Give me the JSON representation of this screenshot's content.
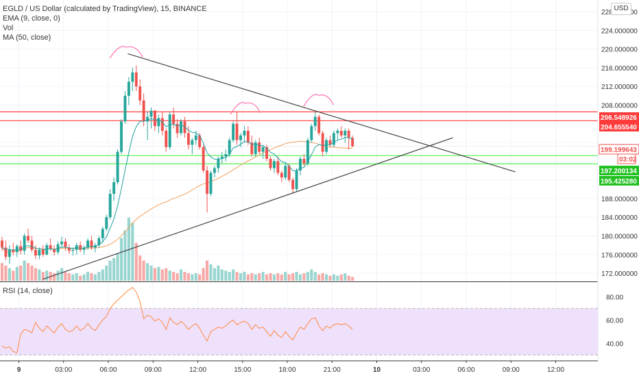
{
  "header": {
    "title": "EGLD / US Dollar (calculated by TradingView), 15, BINANCE",
    "indicators": [
      "EMA (9, close, 0)",
      "Vol",
      "MA (50, close)"
    ],
    "currency": "USD"
  },
  "rsi_panel": {
    "label": "RSI (14, close)"
  },
  "colors": {
    "up": "#26a69a",
    "down": "#ef5350",
    "ema": "#21a0a0",
    "ma": "#f5a05a",
    "resistance": "#ff3b3b",
    "support": "#4cf04c",
    "trendline": "#444444",
    "annotation": "#ff6fb0",
    "rsi_line": "#ff8a3d",
    "rsi_band": "#efe0fc"
  },
  "chart_data": [
    {
      "type": "candlestick",
      "title": "EGLD / US Dollar (calculated by TradingView), 15, BINANCE",
      "ylim": [
        170.4,
        230.5
      ],
      "y_ticks": [
        172,
        176,
        180,
        184,
        188,
        192,
        196,
        200,
        204,
        208,
        212,
        216,
        220,
        224,
        228
      ],
      "y_tick_labels": [
        "172.000000",
        "176.000000",
        "180.000000",
        "184.000000",
        "188.000000",
        "",
        "",
        "",
        "",
        "208.000000",
        "212.000000",
        "216.000000",
        "220.000000",
        "224.000000",
        "228.000000"
      ],
      "x_ticks": [
        "9",
        "03:00",
        "06:00",
        "09:00",
        "12:00",
        "15:00",
        "18:00",
        "21:00",
        "10",
        "03:00",
        "06:00",
        "09:00",
        "12:00"
      ],
      "x_tick_hours": [
        0,
        3,
        6,
        9,
        12,
        15,
        18,
        21,
        24,
        27,
        30,
        33,
        36
      ],
      "interval_minutes": 15,
      "candles_ohlc": [
        [
          179.0,
          179.8,
          176.8,
          177.5
        ],
        [
          177.5,
          179.0,
          174.8,
          175.5
        ],
        [
          175.5,
          178.0,
          174.0,
          177.0
        ],
        [
          177.0,
          178.5,
          175.8,
          176.5
        ],
        [
          176.5,
          178.2,
          175.5,
          177.8
        ],
        [
          177.8,
          179.0,
          176.0,
          176.8
        ],
        [
          176.8,
          180.5,
          176.0,
          180.0
        ],
        [
          180.0,
          181.5,
          178.5,
          179.0
        ],
        [
          179.0,
          180.0,
          176.5,
          177.0
        ],
        [
          177.0,
          178.0,
          175.0,
          175.8
        ],
        [
          175.8,
          177.5,
          175.0,
          177.0
        ],
        [
          177.0,
          178.0,
          175.5,
          176.0
        ],
        [
          176.0,
          178.5,
          175.8,
          178.0
        ],
        [
          178.0,
          179.5,
          176.8,
          177.2
        ],
        [
          177.2,
          178.0,
          175.8,
          176.5
        ],
        [
          176.5,
          178.8,
          176.0,
          178.2
        ],
        [
          178.2,
          179.8,
          177.5,
          178.8
        ],
        [
          178.8,
          179.5,
          176.8,
          177.5
        ],
        [
          177.5,
          178.2,
          176.2,
          176.8
        ],
        [
          176.8,
          177.5,
          175.8,
          177.0
        ],
        [
          177.0,
          178.5,
          176.0,
          178.0
        ],
        [
          178.0,
          178.8,
          176.5,
          177.0
        ],
        [
          177.0,
          178.0,
          176.0,
          177.5
        ],
        [
          177.5,
          179.5,
          177.0,
          179.0
        ],
        [
          179.0,
          180.0,
          177.0,
          177.5
        ],
        [
          177.5,
          178.5,
          176.5,
          178.0
        ],
        [
          178.0,
          180.0,
          177.5,
          179.5
        ],
        [
          179.5,
          182.0,
          178.5,
          181.5
        ],
        [
          181.5,
          184.5,
          181.0,
          184.0
        ],
        [
          184.0,
          190.0,
          183.5,
          189.0
        ],
        [
          189.0,
          192.5,
          187.5,
          191.5
        ],
        [
          191.5,
          198.5,
          191.0,
          198.0
        ],
        [
          198.0,
          205.0,
          197.5,
          204.5
        ],
        [
          204.5,
          211.0,
          204.0,
          210.0
        ],
        [
          210.0,
          214.0,
          208.0,
          213.0
        ],
        [
          213.0,
          216.0,
          211.0,
          215.0
        ],
        [
          215.0,
          216.5,
          211.0,
          212.0
        ],
        [
          212.0,
          213.5,
          208.0,
          209.0
        ],
        [
          209.0,
          210.5,
          203.5,
          204.5
        ],
        [
          204.5,
          206.5,
          200.5,
          205.5
        ],
        [
          205.5,
          207.5,
          203.0,
          206.8
        ],
        [
          206.8,
          207.0,
          202.5,
          203.5
        ],
        [
          203.5,
          206.0,
          202.0,
          205.2
        ],
        [
          205.2,
          206.5,
          201.5,
          202.5
        ],
        [
          202.5,
          203.0,
          198.0,
          199.0
        ],
        [
          199.0,
          206.5,
          198.5,
          206.0
        ],
        [
          206.0,
          207.5,
          203.0,
          204.0
        ],
        [
          204.0,
          205.0,
          201.0,
          202.0
        ],
        [
          202.0,
          205.0,
          201.5,
          204.5
        ],
        [
          204.5,
          205.5,
          201.0,
          202.0
        ],
        [
          202.0,
          203.5,
          198.5,
          199.5
        ],
        [
          199.5,
          201.0,
          197.5,
          200.5
        ],
        [
          200.5,
          202.5,
          199.5,
          201.5
        ],
        [
          201.5,
          202.0,
          198.5,
          199.0
        ],
        [
          199.0,
          199.5,
          193.5,
          194.0
        ],
        [
          194.0,
          195.0,
          185.0,
          189.0
        ],
        [
          189.0,
          194.0,
          188.5,
          193.5
        ],
        [
          193.5,
          195.0,
          192.5,
          194.5
        ],
        [
          194.5,
          197.0,
          193.5,
          196.5
        ],
        [
          196.5,
          198.0,
          195.5,
          197.0
        ],
        [
          197.0,
          198.5,
          196.0,
          197.5
        ],
        [
          197.5,
          201.0,
          197.0,
          200.5
        ],
        [
          200.5,
          204.5,
          200.0,
          204.0
        ],
        [
          204.0,
          206.5,
          199.5,
          200.5
        ],
        [
          200.5,
          202.0,
          199.0,
          201.5
        ],
        [
          201.5,
          203.5,
          200.0,
          202.5
        ],
        [
          202.5,
          203.5,
          199.5,
          200.0
        ],
        [
          200.0,
          201.5,
          197.0,
          197.5
        ],
        [
          197.5,
          200.5,
          197.0,
          200.0
        ],
        [
          200.0,
          201.0,
          197.5,
          198.0
        ],
        [
          198.0,
          199.5,
          196.5,
          199.0
        ],
        [
          199.0,
          199.5,
          196.0,
          196.5
        ],
        [
          196.5,
          197.0,
          194.0,
          194.5
        ],
        [
          194.5,
          196.5,
          193.5,
          196.0
        ],
        [
          196.0,
          197.0,
          193.0,
          193.5
        ],
        [
          193.5,
          194.0,
          191.5,
          192.5
        ],
        [
          192.5,
          195.5,
          192.0,
          195.0
        ],
        [
          195.0,
          195.5,
          191.5,
          192.0
        ],
        [
          192.0,
          192.5,
          189.0,
          190.0
        ],
        [
          190.0,
          194.5,
          189.5,
          194.0
        ],
        [
          194.0,
          197.0,
          193.0,
          196.5
        ],
        [
          196.5,
          197.5,
          195.0,
          195.5
        ],
        [
          195.5,
          201.0,
          195.0,
          200.5
        ],
        [
          200.5,
          204.0,
          200.0,
          203.5
        ],
        [
          203.5,
          206.5,
          202.5,
          205.5
        ],
        [
          205.5,
          206.0,
          201.5,
          202.0
        ],
        [
          202.0,
          202.5,
          197.0,
          198.0
        ],
        [
          198.0,
          201.0,
          197.5,
          200.5
        ],
        [
          200.5,
          201.5,
          199.0,
          199.5
        ],
        [
          199.5,
          202.5,
          199.0,
          202.0
        ],
        [
          202.0,
          203.0,
          200.5,
          202.5
        ],
        [
          202.5,
          203.5,
          201.0,
          201.5
        ],
        [
          201.5,
          203.0,
          200.0,
          202.5
        ],
        [
          202.5,
          203.0,
          198.5,
          201.0
        ],
        [
          201.0,
          201.5,
          199.0,
          199.2
        ]
      ],
      "volume": [
        7.0,
        6.0,
        5.0,
        4.0,
        5.5,
        6.0,
        8.0,
        7.0,
        6.0,
        5.0,
        4.5,
        3.5,
        4.0,
        3.5,
        3.0,
        4.0,
        5.0,
        3.5,
        3.0,
        2.5,
        3.0,
        2.0,
        2.5,
        3.5,
        3.0,
        2.5,
        3.5,
        4.5,
        6.0,
        8.0,
        9.0,
        11.0,
        17.0,
        20.0,
        25.0,
        23.0,
        15.0,
        10.0,
        8.0,
        7.0,
        6.0,
        5.0,
        5.5,
        4.5,
        5.0,
        4.0,
        3.5,
        3.0,
        4.5,
        3.5,
        3.0,
        2.5,
        3.0,
        2.5,
        5.0,
        8.0,
        6.5,
        5.0,
        6.0,
        4.5,
        4.0,
        3.5,
        4.5,
        3.5,
        3.0,
        3.5,
        2.5,
        3.0,
        2.5,
        3.0,
        3.5,
        2.5,
        3.0,
        2.5,
        3.0,
        2.5,
        3.5,
        2.5,
        3.0,
        3.5,
        2.5,
        3.0,
        3.5,
        4.5,
        3.5,
        2.5,
        3.0,
        2.5,
        2.0,
        2.5,
        2.0,
        2.5,
        3.0,
        2.0,
        1.5
      ],
      "horizontal_lines": [
        206.548926,
        204.65554,
        199.199643,
        197.200134,
        195.42528
      ],
      "price_labels": [
        {
          "text": "206.548926",
          "value": 206.548926,
          "kind": "resistance"
        },
        {
          "text": "204.655540",
          "value": 204.65554,
          "kind": "resistance"
        },
        {
          "text": "199.199643",
          "value": 199.199643,
          "kind": "last"
        },
        {
          "text": "03:02",
          "value": 197.75,
          "kind": "countdown"
        },
        {
          "text": "197.200134",
          "value": 197.200134,
          "kind": "support"
        },
        {
          "text": "195.425280",
          "value": 195.42528,
          "kind": "support"
        }
      ],
      "trendlines": [
        {
          "from": [
            7.3,
            219.0
          ],
          "to": [
            33.3,
            193.7
          ]
        },
        {
          "from": [
            1.6,
            170.7
          ],
          "to": [
            29.1,
            201.0
          ]
        }
      ]
    },
    {
      "type": "line",
      "title": "RSI (14, close)",
      "ylim": [
        25,
        92
      ],
      "y_ticks": [
        40,
        60,
        80
      ],
      "y_tick_labels": [
        "40.00",
        "60.00",
        "80.00"
      ],
      "band": [
        30,
        70
      ],
      "values": [
        38,
        36,
        37,
        33,
        32,
        48,
        52,
        51,
        49,
        58,
        53,
        50,
        55,
        52,
        49,
        54,
        57,
        52,
        50,
        51,
        55,
        51,
        53,
        57,
        53,
        51,
        56,
        60,
        63,
        70,
        74,
        77,
        80,
        83,
        86,
        88,
        84,
        76,
        61,
        64,
        63,
        59,
        61,
        58,
        52,
        62,
        58,
        56,
        59,
        56,
        52,
        55,
        57,
        53,
        47,
        42,
        50,
        52,
        54,
        53,
        55,
        58,
        60,
        56,
        58,
        59,
        57,
        52,
        56,
        53,
        54,
        50,
        46,
        51,
        47,
        45,
        50,
        46,
        43,
        49,
        54,
        52,
        57,
        61,
        62,
        55,
        51,
        55,
        53,
        56,
        57,
        56,
        57,
        55,
        52
      ]
    }
  ]
}
